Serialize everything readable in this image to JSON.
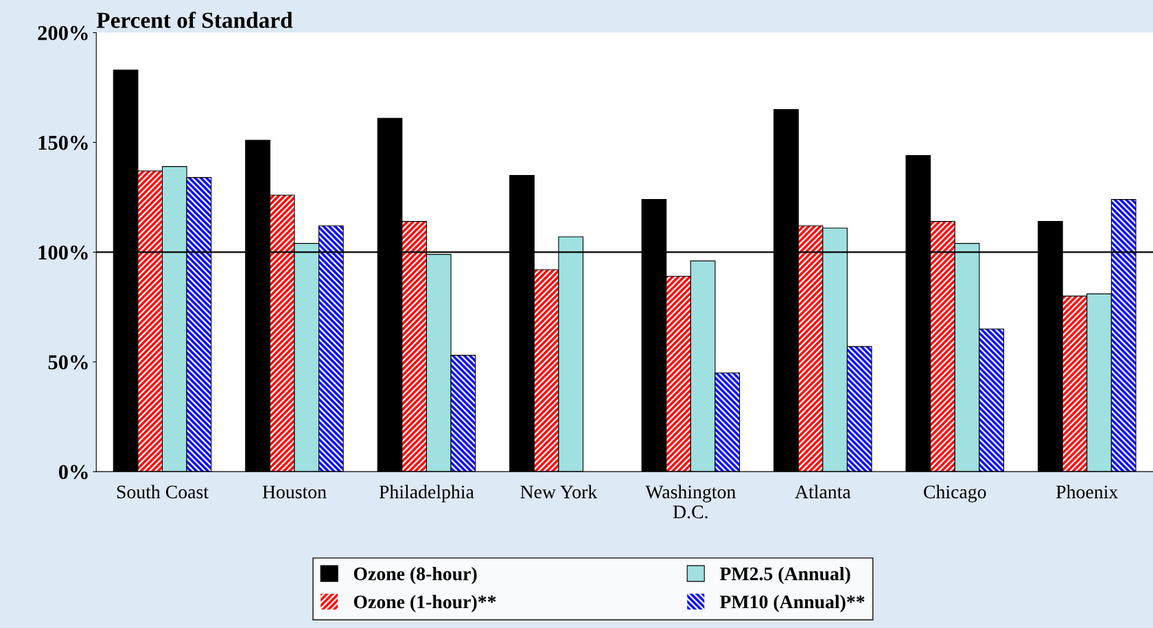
{
  "chart_data": {
    "type": "bar",
    "title": "Percent of Standard",
    "categories": [
      "South Coast",
      "Houston",
      "Philadelphia",
      "New York",
      "Washington\nD.C.",
      "Atlanta",
      "Chicago",
      "Phoenix"
    ],
    "series": [
      {
        "name": "Ozone (8-hour)",
        "color": "#000000",
        "values": [
          183,
          151,
          161,
          135,
          124,
          165,
          144,
          114
        ]
      },
      {
        "name": "Ozone (1-hour)**",
        "color": "#ff0000",
        "values": [
          137,
          126,
          114,
          92,
          89,
          112,
          114,
          80
        ]
      },
      {
        "name": "PM2.5 (Annual)",
        "color": "#a0e0e0",
        "values": [
          139,
          104,
          99,
          107,
          96,
          111,
          104,
          81
        ]
      },
      {
        "name": "PM10 (Annual)**",
        "color": "#0000ff",
        "values": [
          134,
          112,
          53,
          null,
          45,
          57,
          65,
          124
        ]
      }
    ],
    "ylim": [
      0,
      200
    ],
    "yticks": [
      {
        "value": 0,
        "label": "0%"
      },
      {
        "value": 50,
        "label": "50%"
      },
      {
        "value": 100,
        "label": "100%"
      },
      {
        "value": 150,
        "label": "150%"
      },
      {
        "value": 200,
        "label": "200%"
      }
    ],
    "ref_lines": [
      {
        "axis": "y",
        "value": 100,
        "color": "#000000"
      }
    ],
    "grid": false,
    "legend": "bottom"
  }
}
